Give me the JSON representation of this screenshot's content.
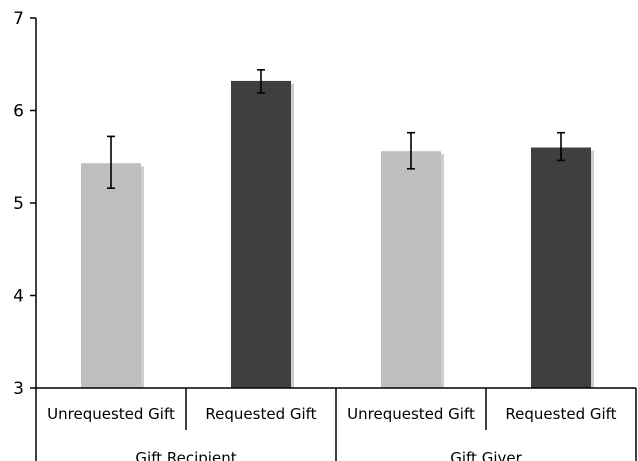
{
  "chart_data": {
    "type": "bar",
    "title": "",
    "xlabel": "",
    "ylabel": "",
    "ylim": [
      3,
      7
    ],
    "yticks": [
      "3",
      "4",
      "5",
      "6",
      "7"
    ],
    "grid": false,
    "categories": [
      "Unrequested Gift",
      "Requested Gift",
      "Unrequested Gift",
      "Requested Gift"
    ],
    "groups": [
      {
        "label": "Gift Recipient",
        "category_indices": [
          0,
          1
        ]
      },
      {
        "label": "Gift Giver",
        "category_indices": [
          2,
          3
        ]
      }
    ],
    "values": [
      5.43,
      6.32,
      5.56,
      5.6
    ],
    "error_low": [
      5.16,
      6.19,
      5.37,
      5.46
    ],
    "error_high": [
      5.72,
      6.44,
      5.76,
      5.76
    ],
    "bar_colors": [
      "#bfbfbf",
      "#3f3f3f",
      "#bfbfbf",
      "#3f3f3f"
    ],
    "colors": {
      "unrequested": "#bfbfbf",
      "requested": "#3f3f3f",
      "shadow": "#a6a6a6",
      "axis": "#000000"
    }
  }
}
